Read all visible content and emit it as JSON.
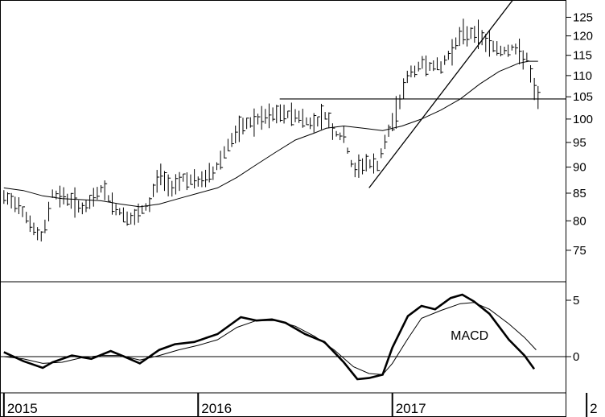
{
  "chart_data": [
    {
      "type": "bar",
      "style": "ohlc",
      "title": "",
      "xlabel": "",
      "ylabel": "",
      "ylim": [
        70,
        128
      ],
      "scale": "log",
      "y_ticks": [
        75,
        80,
        85,
        90,
        95,
        100,
        105,
        110,
        115,
        120,
        125
      ],
      "grid": false,
      "x_year_labels": [
        "2015",
        "2016",
        "2017",
        "2"
      ],
      "horizontal_line": 104.5,
      "trendline": {
        "start": {
          "x": 2016.88,
          "y": 86
        },
        "end": {
          "x": 2017.65,
          "y": 132
        }
      },
      "series": [
        {
          "name": "",
          "points": [
            [
              2015.0,
              84
            ],
            [
              2015.08,
              83
            ],
            [
              2015.16,
              78
            ],
            [
              2015.2,
              77
            ],
            [
              2015.25,
              85
            ],
            [
              2015.33,
              84
            ],
            [
              2015.42,
              82
            ],
            [
              2015.5,
              86
            ],
            [
              2015.58,
              82
            ],
            [
              2015.66,
              80
            ],
            [
              2015.75,
              83
            ],
            [
              2015.8,
              89
            ],
            [
              2015.85,
              86
            ],
            [
              2015.92,
              88
            ],
            [
              2016.0,
              87
            ],
            [
              2016.08,
              89
            ],
            [
              2016.16,
              95
            ],
            [
              2016.25,
              99
            ],
            [
              2016.33,
              100
            ],
            [
              2016.4,
              101
            ],
            [
              2016.5,
              101
            ],
            [
              2016.58,
              99
            ],
            [
              2016.66,
              101
            ],
            [
              2016.7,
              97
            ],
            [
              2016.75,
              96
            ],
            [
              2016.8,
              89
            ],
            [
              2016.86,
              91
            ],
            [
              2016.92,
              90
            ],
            [
              2016.98,
              97
            ],
            [
              2017.03,
              103
            ],
            [
              2017.08,
              110
            ],
            [
              2017.16,
              113
            ],
            [
              2017.25,
              112
            ],
            [
              2017.3,
              116
            ],
            [
              2017.35,
              120
            ],
            [
              2017.42,
              121
            ],
            [
              2017.5,
              118
            ],
            [
              2017.56,
              116
            ],
            [
              2017.62,
              117
            ],
            [
              2017.66,
              115
            ],
            [
              2017.7,
              114
            ],
            [
              2017.72,
              107
            ],
            [
              2017.75,
              105
            ]
          ]
        },
        {
          "name": "",
          "points": [
            [
              2015.0,
              86
            ],
            [
              2015.1,
              85.5
            ],
            [
              2015.2,
              84.5
            ],
            [
              2015.3,
              84
            ],
            [
              2015.4,
              83.8
            ],
            [
              2015.5,
              83.6
            ],
            [
              2015.6,
              83
            ],
            [
              2015.7,
              82.5
            ],
            [
              2015.8,
              83
            ],
            [
              2015.9,
              84
            ],
            [
              2016.0,
              85
            ],
            [
              2016.1,
              86
            ],
            [
              2016.2,
              88
            ],
            [
              2016.3,
              90.5
            ],
            [
              2016.4,
              93
            ],
            [
              2016.5,
              95.5
            ],
            [
              2016.6,
              97
            ],
            [
              2016.66,
              98
            ],
            [
              2016.75,
              98.5
            ],
            [
              2016.85,
              98
            ],
            [
              2016.95,
              97.5
            ],
            [
              2017.05,
              98.5
            ],
            [
              2017.15,
              100
            ],
            [
              2017.25,
              102
            ],
            [
              2017.35,
              104.5
            ],
            [
              2017.45,
              108
            ],
            [
              2017.55,
              111
            ],
            [
              2017.6,
              112
            ],
            [
              2017.65,
              113
            ],
            [
              2017.7,
              113.5
            ],
            [
              2017.75,
              113.5
            ]
          ]
        }
      ]
    },
    {
      "type": "line",
      "title": "",
      "xlabel": "",
      "ylabel": "",
      "ylim": [
        -3,
        6.5
      ],
      "y_ticks": [
        0,
        5
      ],
      "zero_line": 0,
      "grid": false,
      "annotations": [
        {
          "text": "MACD",
          "x": 2017.3,
          "y": 1.5
        }
      ],
      "series": [
        {
          "name": "",
          "style": "thick",
          "points": [
            [
              2015.0,
              0.4
            ],
            [
              2015.1,
              -0.4
            ],
            [
              2015.2,
              -1.0
            ],
            [
              2015.25,
              -0.5
            ],
            [
              2015.35,
              0.1
            ],
            [
              2015.45,
              -0.2
            ],
            [
              2015.55,
              0.5
            ],
            [
              2015.62,
              0.0
            ],
            [
              2015.7,
              -0.6
            ],
            [
              2015.8,
              0.6
            ],
            [
              2015.88,
              1.1
            ],
            [
              2015.98,
              1.3
            ],
            [
              2016.1,
              2.0
            ],
            [
              2016.22,
              3.5
            ],
            [
              2016.3,
              3.2
            ],
            [
              2016.38,
              3.3
            ],
            [
              2016.45,
              3.0
            ],
            [
              2016.55,
              2.0
            ],
            [
              2016.65,
              1.3
            ],
            [
              2016.75,
              -0.5
            ],
            [
              2016.82,
              -2.0
            ],
            [
              2016.88,
              -1.9
            ],
            [
              2016.95,
              -1.6
            ],
            [
              2017.0,
              0.8
            ],
            [
              2017.08,
              3.6
            ],
            [
              2017.15,
              4.5
            ],
            [
              2017.22,
              4.2
            ],
            [
              2017.3,
              5.2
            ],
            [
              2017.36,
              5.5
            ],
            [
              2017.42,
              4.9
            ],
            [
              2017.5,
              3.8
            ],
            [
              2017.6,
              1.5
            ],
            [
              2017.68,
              0.1
            ],
            [
              2017.73,
              -1.1
            ]
          ]
        },
        {
          "name": "",
          "style": "thin",
          "points": [
            [
              2015.0,
              0.0
            ],
            [
              2015.1,
              -0.2
            ],
            [
              2015.2,
              -0.6
            ],
            [
              2015.3,
              -0.5
            ],
            [
              2015.4,
              -0.1
            ],
            [
              2015.5,
              0.1
            ],
            [
              2015.6,
              0.1
            ],
            [
              2015.7,
              -0.3
            ],
            [
              2015.8,
              0.1
            ],
            [
              2015.9,
              0.6
            ],
            [
              2016.0,
              1.0
            ],
            [
              2016.1,
              1.5
            ],
            [
              2016.2,
              2.6
            ],
            [
              2016.3,
              3.2
            ],
            [
              2016.4,
              3.2
            ],
            [
              2016.5,
              2.7
            ],
            [
              2016.6,
              1.8
            ],
            [
              2016.7,
              0.6
            ],
            [
              2016.8,
              -0.9
            ],
            [
              2016.88,
              -1.5
            ],
            [
              2016.95,
              -1.6
            ],
            [
              2017.0,
              -0.6
            ],
            [
              2017.08,
              1.6
            ],
            [
              2017.15,
              3.4
            ],
            [
              2017.25,
              4.1
            ],
            [
              2017.35,
              4.7
            ],
            [
              2017.42,
              4.8
            ],
            [
              2017.5,
              4.2
            ],
            [
              2017.6,
              2.9
            ],
            [
              2017.68,
              1.7
            ],
            [
              2017.74,
              0.6
            ]
          ]
        }
      ]
    }
  ]
}
